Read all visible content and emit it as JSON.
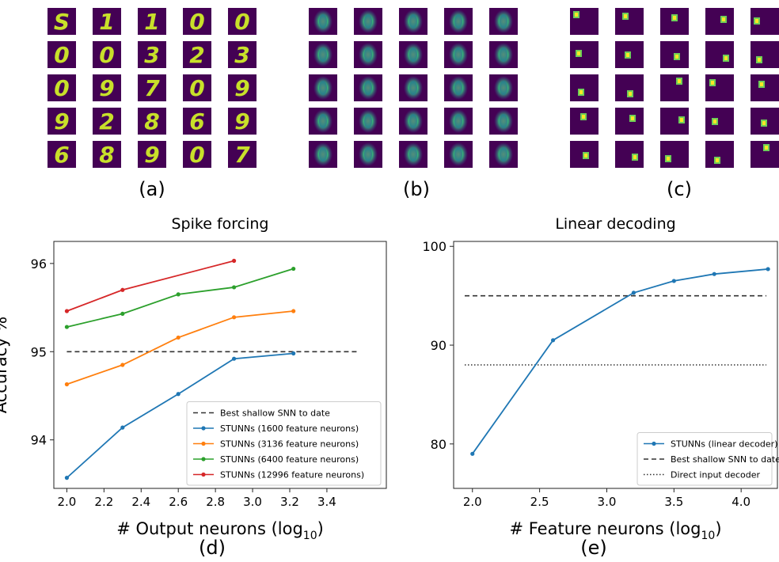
{
  "panel_labels": {
    "a": "(a)",
    "b": "(b)",
    "c": "(c)",
    "d": "(d)",
    "e": "(e)"
  },
  "colors": {
    "viridis_bg": "#440154",
    "series_blue": "#1f77b4",
    "series_orange": "#ff7f0e",
    "series_green": "#2ca02c",
    "series_red": "#d62728",
    "reference_line": "#333333"
  },
  "image_grids": [
    {
      "label": "(a)",
      "rows": 5,
      "cols": 5,
      "content": "digit-prototypes"
    },
    {
      "label": "(b)",
      "rows": 5,
      "cols": 5,
      "content": "blurred-digit-prototypes"
    },
    {
      "label": "(c)",
      "rows": 5,
      "cols": 5,
      "content": "localized-patches"
    }
  ],
  "chart_data": [
    {
      "type": "line",
      "title": "Spike forcing",
      "xlabel": "# Output neurons (log10)",
      "ylabel": "Accuracy %",
      "xlim": [
        1.93,
        3.72
      ],
      "ylim": [
        93.45,
        96.25
      ],
      "xticks": [
        "2.0",
        "2.2",
        "2.4",
        "2.6",
        "2.8",
        "3.0",
        "3.2",
        "3.4"
      ],
      "xtick_values": [
        2.0,
        2.2,
        2.4,
        2.6,
        2.8,
        3.0,
        3.2,
        3.4
      ],
      "yticks": [
        "94",
        "95",
        "96"
      ],
      "ytick_values": [
        94,
        95,
        96
      ],
      "legend_position": "lower-right",
      "reference_lines": [
        {
          "name": "Best shallow SNN to date",
          "y": 95.0,
          "x_range": [
            2.0,
            3.56
          ],
          "style": "dashed"
        }
      ],
      "series": [
        {
          "name": "STUNNs (1600 feature neurons)",
          "color": "#1f77b4",
          "x": [
            2.0,
            2.3,
            2.6,
            2.9,
            3.22
          ],
          "y": [
            93.57,
            94.14,
            94.52,
            94.92,
            94.98
          ]
        },
        {
          "name": "STUNNs (3136 feature neurons)",
          "color": "#ff7f0e",
          "x": [
            2.0,
            2.3,
            2.6,
            2.9,
            3.22
          ],
          "y": [
            94.63,
            94.85,
            95.16,
            95.39,
            95.46
          ]
        },
        {
          "name": "STUNNs (6400 feature neurons)",
          "color": "#2ca02c",
          "x": [
            2.0,
            2.3,
            2.6,
            2.9,
            3.22
          ],
          "y": [
            95.28,
            95.43,
            95.65,
            95.73,
            95.94
          ]
        },
        {
          "name": "STUNNs (12996 feature neurons)",
          "color": "#d62728",
          "x": [
            2.0,
            2.3,
            2.9
          ],
          "y": [
            95.46,
            95.7,
            96.03
          ]
        }
      ]
    },
    {
      "type": "line",
      "title": "Linear decoding",
      "xlabel": "# Feature neurons (log10)",
      "ylabel": "",
      "xlim": [
        1.86,
        4.27
      ],
      "ylim": [
        75.5,
        100.5
      ],
      "xticks": [
        "2.0",
        "2.5",
        "3.0",
        "3.5",
        "4.0"
      ],
      "xtick_values": [
        2.0,
        2.5,
        3.0,
        3.5,
        4.0
      ],
      "yticks": [
        "80",
        "90",
        "100"
      ],
      "ytick_values": [
        80,
        90,
        100
      ],
      "legend_position": "lower-right",
      "reference_lines": [
        {
          "name": "Best shallow SNN to date",
          "y": 95.0,
          "style": "dashed"
        },
        {
          "name": "Direct input decoder",
          "y": 88.0,
          "style": "dotted"
        }
      ],
      "series": [
        {
          "name": "STUNNs (linear decoder)",
          "color": "#1f77b4",
          "x": [
            2.0,
            2.6,
            3.2,
            3.5,
            3.8,
            4.2
          ],
          "y": [
            79.0,
            90.5,
            95.3,
            96.5,
            97.2,
            97.7
          ]
        }
      ]
    }
  ]
}
